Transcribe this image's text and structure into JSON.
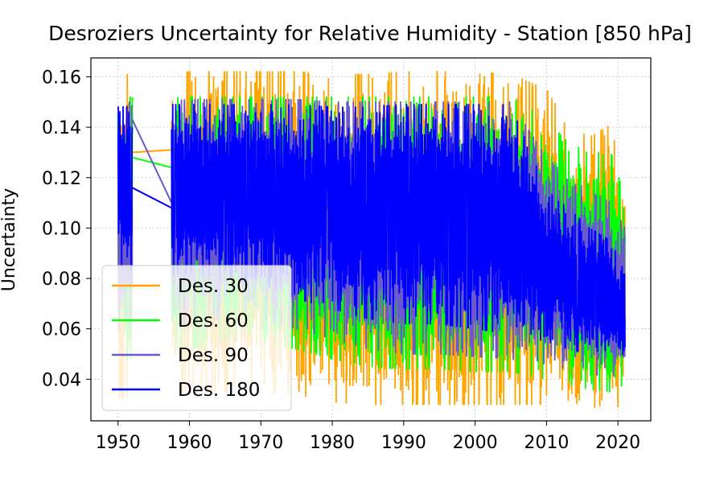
{
  "chart_data": {
    "type": "line",
    "title": "Desroziers Uncertainty for Relative Humidity  - Station  [850 hPa]",
    "xlabel": "",
    "ylabel": "Uncertainty",
    "xlim": [
      1946.2,
      2024.6
    ],
    "ylim": [
      0.0235,
      0.1675
    ],
    "xticks": [
      1950,
      1960,
      1970,
      1980,
      1990,
      2000,
      2010,
      2020
    ],
    "yticks": [
      0.04,
      0.06,
      0.08,
      0.1,
      0.12,
      0.14,
      0.16
    ],
    "ytick_labels": [
      "0.04",
      "0.06",
      "0.08",
      "0.10",
      "0.12",
      "0.14",
      "0.16"
    ],
    "grid": true,
    "legend_position": "lower-left",
    "series": [
      {
        "name": "Des. 30",
        "color": "#FFA500",
        "segments": [
          {
            "start": 1950.0,
            "end": 1952.0
          },
          {
            "start": 1957.5,
            "end": 2021.0
          }
        ],
        "gap_line": [
          [
            1952.0,
            0.13
          ],
          [
            1957.5,
            0.131
          ]
        ],
        "envelope": [
          [
            1950,
            0.032,
            0.161
          ],
          [
            1955,
            0.035,
            0.161
          ],
          [
            1960,
            0.035,
            0.162
          ],
          [
            1965,
            0.035,
            0.162
          ],
          [
            1970,
            0.035,
            0.162
          ],
          [
            1975,
            0.034,
            0.162
          ],
          [
            1980,
            0.031,
            0.161
          ],
          [
            1985,
            0.03,
            0.161
          ],
          [
            1990,
            0.03,
            0.162
          ],
          [
            1995,
            0.03,
            0.162
          ],
          [
            2000,
            0.03,
            0.162
          ],
          [
            2005,
            0.03,
            0.161
          ],
          [
            2010,
            0.03,
            0.155
          ],
          [
            2013,
            0.03,
            0.141
          ],
          [
            2016,
            0.029,
            0.136
          ],
          [
            2019,
            0.028,
            0.141
          ],
          [
            2021,
            0.03,
            0.12
          ]
        ]
      },
      {
        "name": "Des. 60",
        "color": "#00FF00",
        "segments": [
          {
            "start": 1950.0,
            "end": 1952.0
          },
          {
            "start": 1957.5,
            "end": 2021.0
          }
        ],
        "gap_line": [
          [
            1952.0,
            0.128
          ],
          [
            1957.5,
            0.124
          ]
        ],
        "envelope": [
          [
            1950,
            0.046,
            0.152
          ],
          [
            1955,
            0.052,
            0.152
          ],
          [
            1960,
            0.052,
            0.152
          ],
          [
            1965,
            0.055,
            0.152
          ],
          [
            1970,
            0.055,
            0.152
          ],
          [
            1975,
            0.052,
            0.152
          ],
          [
            1980,
            0.048,
            0.152
          ],
          [
            1985,
            0.045,
            0.152
          ],
          [
            1990,
            0.044,
            0.152
          ],
          [
            1995,
            0.044,
            0.152
          ],
          [
            2000,
            0.043,
            0.152
          ],
          [
            2005,
            0.043,
            0.152
          ],
          [
            2010,
            0.04,
            0.143
          ],
          [
            2013,
            0.038,
            0.134
          ],
          [
            2016,
            0.036,
            0.13
          ],
          [
            2019,
            0.035,
            0.13
          ],
          [
            2021,
            0.038,
            0.112
          ]
        ]
      },
      {
        "name": "Des. 90",
        "color": "#6A5ACD",
        "segments": [
          {
            "start": 1950.0,
            "end": 1952.0
          },
          {
            "start": 1957.5,
            "end": 2021.0
          }
        ],
        "gap_line": [
          [
            1952.0,
            0.143
          ],
          [
            1957.5,
            0.11
          ]
        ],
        "envelope": [
          [
            1950,
            0.06,
            0.15
          ],
          [
            1955,
            0.062,
            0.15
          ],
          [
            1960,
            0.062,
            0.151
          ],
          [
            1965,
            0.064,
            0.151
          ],
          [
            1970,
            0.064,
            0.151
          ],
          [
            1975,
            0.06,
            0.151
          ],
          [
            1980,
            0.056,
            0.15
          ],
          [
            1985,
            0.052,
            0.15
          ],
          [
            1990,
            0.05,
            0.15
          ],
          [
            1995,
            0.05,
            0.15
          ],
          [
            2000,
            0.049,
            0.15
          ],
          [
            2005,
            0.048,
            0.15
          ],
          [
            2010,
            0.046,
            0.128
          ],
          [
            2013,
            0.044,
            0.12
          ],
          [
            2016,
            0.042,
            0.115
          ],
          [
            2019,
            0.041,
            0.11
          ],
          [
            2021,
            0.043,
            0.1
          ]
        ]
      },
      {
        "name": "Des. 180",
        "color": "#0000FF",
        "segments": [
          {
            "start": 1950.0,
            "end": 1952.0
          },
          {
            "start": 1957.5,
            "end": 2021.0
          }
        ],
        "gap_line": [
          [
            1952.0,
            0.116
          ],
          [
            1957.5,
            0.108
          ]
        ],
        "envelope": [
          [
            1950,
            0.085,
            0.148
          ],
          [
            1955,
            0.08,
            0.149
          ],
          [
            1960,
            0.082,
            0.149
          ],
          [
            1965,
            0.08,
            0.149
          ],
          [
            1970,
            0.078,
            0.149
          ],
          [
            1975,
            0.072,
            0.149
          ],
          [
            1980,
            0.068,
            0.148
          ],
          [
            1985,
            0.064,
            0.148
          ],
          [
            1990,
            0.062,
            0.149
          ],
          [
            1995,
            0.062,
            0.149
          ],
          [
            2000,
            0.06,
            0.149
          ],
          [
            2005,
            0.058,
            0.149
          ],
          [
            2010,
            0.055,
            0.115
          ],
          [
            2013,
            0.052,
            0.108
          ],
          [
            2016,
            0.05,
            0.1
          ],
          [
            2019,
            0.048,
            0.095
          ],
          [
            2021,
            0.05,
            0.082
          ]
        ]
      }
    ]
  }
}
